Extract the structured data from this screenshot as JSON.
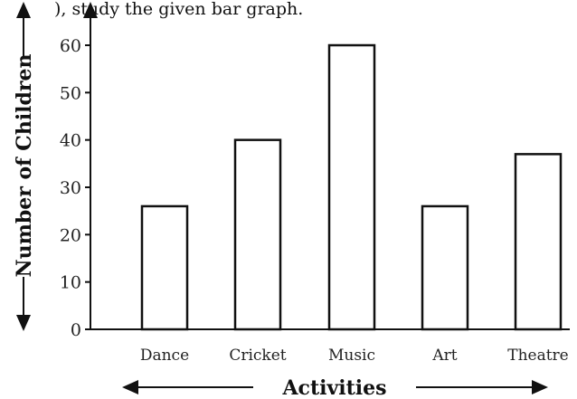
{
  "header_fragment": "), study the given bar graph.",
  "chart_data": {
    "type": "bar",
    "categories": [
      "Dance",
      "Cricket",
      "Music",
      "Art",
      "Theatre"
    ],
    "values": [
      26,
      40,
      60,
      26,
      37
    ],
    "title": "",
    "xlabel": "Activities",
    "ylabel": "Number of Children",
    "ylim": [
      0,
      60
    ],
    "yticks": [
      0,
      10,
      20,
      30,
      40,
      50,
      60
    ],
    "grid": false,
    "bar_fill": "#ffffff",
    "bar_stroke": "#111111"
  }
}
